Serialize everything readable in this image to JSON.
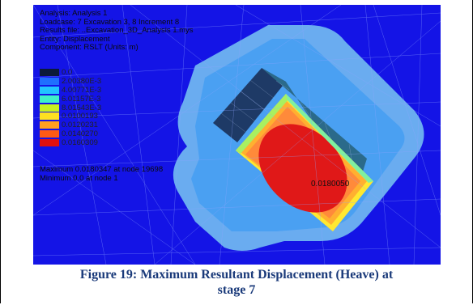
{
  "info": {
    "analysis": "Analysis: Analysis 1",
    "loadcase": "Loadcase: 7 Excavation 3, 8 Increment 8",
    "results_file": "Results file: ..Excavation_3D_Analysis 1.mys",
    "entity": "Entity: Displacement",
    "component": "Component: RSLT (Units: m)"
  },
  "legend": [
    {
      "label": "0.0",
      "color": "#0b1a3a"
    },
    {
      "label": "2.00380E-3",
      "color": "#1f6fff"
    },
    {
      "label": "4.00771E-3",
      "color": "#22c4ff"
    },
    {
      "label": "6.01157E-3",
      "color": "#3ff0c8"
    },
    {
      "label": "8.01543E-3",
      "color": "#c8f020"
    },
    {
      "label": "0.0100193",
      "color": "#ffe020"
    },
    {
      "label": "0.0120231",
      "color": "#ffa020"
    },
    {
      "label": "0.0140270",
      "color": "#ff5a14"
    },
    {
      "label": "0.0160309",
      "color": "#e01010"
    }
  ],
  "maximum_text": "Maximum 0.0180347 at node 19698",
  "minimum_text": "Minimum 0.0 at node 1",
  "peak_label": "0.0180050",
  "caption_line1": "Figure 19: Maximum Resultant Displacement (Heave) at",
  "caption_line2": "stage 7"
}
